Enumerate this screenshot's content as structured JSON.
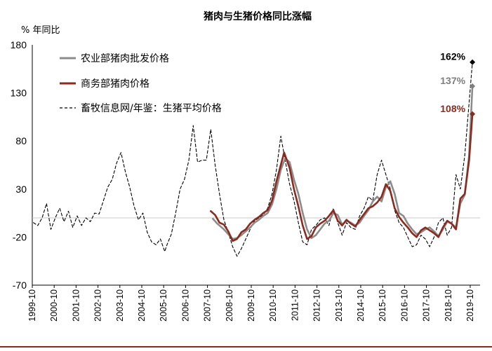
{
  "chart_data": {
    "type": "line",
    "title": "猪肉与生猪价格同比涨幅",
    "ylabel": "% 年同比",
    "xlabel": "",
    "ylim": [
      -70,
      180
    ],
    "yticks": [
      180,
      130,
      80,
      30,
      -20,
      -70
    ],
    "xticks": [
      "1999-10",
      "2000-10",
      "2001-10",
      "2002-10",
      "2003-10",
      "2004-10",
      "2005-10",
      "2006-10",
      "2007-10",
      "2008-10",
      "2009-10",
      "2010-10",
      "2011-10",
      "2012-10",
      "2013-10",
      "2014-10",
      "2015-10",
      "2016-10",
      "2017-10",
      "2018-10",
      "2019-10"
    ],
    "x_unit": "year",
    "legend_position": "top-left",
    "grid": false,
    "series": [
      {
        "name": "农业部猪肉批发价格",
        "color": "#8c8c8c",
        "style": "solid",
        "points": [
          [
            2008.0,
            -1
          ],
          [
            2008.2,
            -6
          ],
          [
            2008.5,
            -12
          ],
          [
            2008.7,
            -17
          ],
          [
            2008.9,
            -22
          ],
          [
            2009.1,
            -21
          ],
          [
            2009.3,
            -18
          ],
          [
            2009.5,
            -14
          ],
          [
            2009.7,
            -10
          ],
          [
            2009.9,
            -5
          ],
          [
            2010.1,
            -2
          ],
          [
            2010.3,
            2
          ],
          [
            2010.5,
            5
          ],
          [
            2010.7,
            14
          ],
          [
            2010.9,
            30
          ],
          [
            2011.1,
            50
          ],
          [
            2011.3,
            62
          ],
          [
            2011.5,
            58
          ],
          [
            2011.7,
            40
          ],
          [
            2011.9,
            25
          ],
          [
            2012.1,
            5
          ],
          [
            2012.3,
            -12
          ],
          [
            2012.5,
            -21
          ],
          [
            2012.7,
            -18
          ],
          [
            2012.9,
            -12
          ],
          [
            2013.1,
            -6
          ],
          [
            2013.3,
            -3
          ],
          [
            2013.5,
            5
          ],
          [
            2013.7,
            3
          ],
          [
            2013.9,
            -7
          ],
          [
            2014.1,
            -3
          ],
          [
            2014.3,
            -5
          ],
          [
            2014.5,
            -8
          ],
          [
            2014.7,
            -5
          ],
          [
            2014.9,
            2
          ],
          [
            2015.1,
            8
          ],
          [
            2015.3,
            17
          ],
          [
            2015.5,
            22
          ],
          [
            2015.7,
            17
          ],
          [
            2015.9,
            32
          ],
          [
            2016.1,
            38
          ],
          [
            2016.3,
            25
          ],
          [
            2016.5,
            5
          ],
          [
            2016.7,
            2
          ],
          [
            2016.9,
            -6
          ],
          [
            2017.1,
            -12
          ],
          [
            2017.3,
            -17
          ],
          [
            2017.5,
            -15
          ],
          [
            2017.7,
            -12
          ],
          [
            2017.9,
            -10
          ],
          [
            2018.1,
            -14
          ],
          [
            2018.3,
            -19
          ],
          [
            2018.5,
            -12
          ],
          [
            2018.7,
            -4
          ],
          [
            2018.9,
            -6
          ],
          [
            2019.1,
            -10
          ],
          [
            2019.3,
            15
          ],
          [
            2019.5,
            24
          ],
          [
            2019.7,
            65
          ],
          [
            2019.85,
            137
          ]
        ]
      },
      {
        "name": "商务部猪肉价格",
        "color": "#8b2a1e",
        "style": "solid",
        "points": [
          [
            2007.9,
            7
          ],
          [
            2008.1,
            3
          ],
          [
            2008.3,
            -5
          ],
          [
            2008.5,
            -7
          ],
          [
            2008.7,
            -14
          ],
          [
            2008.9,
            -24
          ],
          [
            2009.1,
            -22
          ],
          [
            2009.3,
            -15
          ],
          [
            2009.5,
            -12
          ],
          [
            2009.7,
            -6
          ],
          [
            2009.9,
            -2
          ],
          [
            2010.1,
            1
          ],
          [
            2010.3,
            5
          ],
          [
            2010.5,
            8
          ],
          [
            2010.7,
            18
          ],
          [
            2010.9,
            38
          ],
          [
            2011.1,
            55
          ],
          [
            2011.25,
            68
          ],
          [
            2011.5,
            52
          ],
          [
            2011.7,
            30
          ],
          [
            2011.9,
            12
          ],
          [
            2012.1,
            -8
          ],
          [
            2012.3,
            -22
          ],
          [
            2012.5,
            -19
          ],
          [
            2012.7,
            -10
          ],
          [
            2012.9,
            -6
          ],
          [
            2013.1,
            -3
          ],
          [
            2013.3,
            2
          ],
          [
            2013.5,
            8
          ],
          [
            2013.7,
            -3
          ],
          [
            2013.9,
            -8
          ],
          [
            2014.1,
            -2
          ],
          [
            2014.3,
            -6
          ],
          [
            2014.5,
            -9
          ],
          [
            2014.7,
            -2
          ],
          [
            2014.9,
            4
          ],
          [
            2015.1,
            10
          ],
          [
            2015.3,
            12
          ],
          [
            2015.5,
            16
          ],
          [
            2015.7,
            22
          ],
          [
            2015.9,
            35
          ],
          [
            2016.1,
            28
          ],
          [
            2016.3,
            10
          ],
          [
            2016.5,
            1
          ],
          [
            2016.7,
            -5
          ],
          [
            2016.9,
            -10
          ],
          [
            2017.1,
            -16
          ],
          [
            2017.3,
            -20
          ],
          [
            2017.5,
            -13
          ],
          [
            2017.7,
            -10
          ],
          [
            2017.9,
            -13
          ],
          [
            2018.1,
            -16
          ],
          [
            2018.3,
            -20
          ],
          [
            2018.5,
            -10
          ],
          [
            2018.7,
            -3
          ],
          [
            2018.9,
            -6
          ],
          [
            2019.1,
            -12
          ],
          [
            2019.3,
            20
          ],
          [
            2019.5,
            25
          ],
          [
            2019.7,
            60
          ],
          [
            2019.85,
            108
          ]
        ]
      },
      {
        "name": "畜牧信息网/年鉴：生猪平均价格",
        "color": "#000000",
        "style": "dashed",
        "points": [
          [
            1999.8,
            -5
          ],
          [
            2000.0,
            -8
          ],
          [
            2000.2,
            0
          ],
          [
            2000.4,
            15
          ],
          [
            2000.6,
            -12
          ],
          [
            2000.8,
            0
          ],
          [
            2001.0,
            10
          ],
          [
            2001.2,
            -4
          ],
          [
            2001.4,
            7
          ],
          [
            2001.6,
            -10
          ],
          [
            2001.8,
            2
          ],
          [
            2002.0,
            -8
          ],
          [
            2002.2,
            0
          ],
          [
            2002.4,
            -4
          ],
          [
            2002.6,
            5
          ],
          [
            2002.8,
            4
          ],
          [
            2003.0,
            18
          ],
          [
            2003.2,
            32
          ],
          [
            2003.4,
            40
          ],
          [
            2003.6,
            57
          ],
          [
            2003.8,
            68
          ],
          [
            2004.0,
            48
          ],
          [
            2004.2,
            32
          ],
          [
            2004.4,
            12
          ],
          [
            2004.6,
            -2
          ],
          [
            2004.8,
            5
          ],
          [
            2005.0,
            -15
          ],
          [
            2005.2,
            -25
          ],
          [
            2005.4,
            -28
          ],
          [
            2005.6,
            -22
          ],
          [
            2005.8,
            -35
          ],
          [
            2005.9,
            -28
          ],
          [
            2006.1,
            -17
          ],
          [
            2006.3,
            5
          ],
          [
            2006.5,
            30
          ],
          [
            2006.7,
            40
          ],
          [
            2006.9,
            60
          ],
          [
            2007.1,
            96
          ],
          [
            2007.3,
            58
          ],
          [
            2007.5,
            60
          ],
          [
            2007.7,
            60
          ],
          [
            2007.9,
            92
          ],
          [
            2008.1,
            55
          ],
          [
            2008.3,
            25
          ],
          [
            2008.5,
            -2
          ],
          [
            2008.7,
            -15
          ],
          [
            2008.9,
            -30
          ],
          [
            2009.1,
            -40
          ],
          [
            2009.3,
            -32
          ],
          [
            2009.5,
            -22
          ],
          [
            2009.7,
            -12
          ],
          [
            2009.9,
            -3
          ],
          [
            2010.1,
            0
          ],
          [
            2010.3,
            3
          ],
          [
            2010.5,
            10
          ],
          [
            2010.7,
            25
          ],
          [
            2010.9,
            50
          ],
          [
            2011.1,
            85
          ],
          [
            2011.3,
            60
          ],
          [
            2011.5,
            35
          ],
          [
            2011.7,
            18
          ],
          [
            2011.9,
            -5
          ],
          [
            2012.1,
            -25
          ],
          [
            2012.3,
            -28
          ],
          [
            2012.5,
            -12
          ],
          [
            2012.7,
            -8
          ],
          [
            2012.9,
            -2
          ],
          [
            2013.1,
            0
          ],
          [
            2013.3,
            -8
          ],
          [
            2013.5,
            10
          ],
          [
            2013.7,
            -5
          ],
          [
            2013.9,
            -18
          ],
          [
            2014.1,
            -5
          ],
          [
            2014.3,
            -10
          ],
          [
            2014.5,
            -12
          ],
          [
            2014.7,
            2
          ],
          [
            2014.9,
            10
          ],
          [
            2015.1,
            22
          ],
          [
            2015.3,
            18
          ],
          [
            2015.5,
            45
          ],
          [
            2015.7,
            60
          ],
          [
            2015.9,
            45
          ],
          [
            2016.1,
            30
          ],
          [
            2016.3,
            8
          ],
          [
            2016.5,
            -5
          ],
          [
            2016.7,
            -10
          ],
          [
            2016.9,
            -20
          ],
          [
            2017.1,
            -30
          ],
          [
            2017.3,
            -28
          ],
          [
            2017.5,
            -18
          ],
          [
            2017.7,
            -22
          ],
          [
            2017.9,
            -30
          ],
          [
            2018.1,
            -20
          ],
          [
            2018.3,
            -5
          ],
          [
            2018.5,
            0
          ],
          [
            2018.7,
            -18
          ],
          [
            2018.9,
            -10
          ],
          [
            2019.1,
            45
          ],
          [
            2019.3,
            30
          ],
          [
            2019.5,
            65
          ],
          [
            2019.7,
            120
          ],
          [
            2019.85,
            162
          ]
        ]
      }
    ],
    "annotations": [
      {
        "text": "162%",
        "x": 2019.85,
        "y": 162,
        "color": "#000000"
      },
      {
        "text": "137%",
        "x": 2019.85,
        "y": 137,
        "color": "#7f7f7f"
      },
      {
        "text": "108%",
        "x": 2019.85,
        "y": 108,
        "color": "#8b2a1e"
      }
    ]
  }
}
